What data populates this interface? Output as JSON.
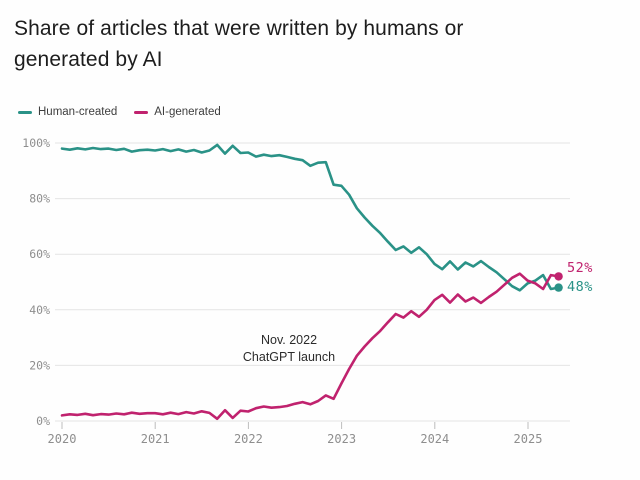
{
  "title": "Share of articles that were written by humans or generated by AI",
  "legend": [
    {
      "label": "Human-created",
      "color": "#2a9287"
    },
    {
      "label": "AI-generated",
      "color": "#c0226e"
    }
  ],
  "annotation": {
    "line1": "Nov. 2022",
    "line2": "ChatGPT launch"
  },
  "chart_data": {
    "type": "line",
    "title": "Share of articles that were written by humans or generated by AI",
    "x_unit": "month",
    "x_start": "2020-01",
    "x_end": "2025-05",
    "x_tick_years": [
      2020,
      2021,
      2022,
      2023,
      2024,
      2025
    ],
    "x_tick_labels": [
      "2020",
      "2021",
      "2022",
      "2023",
      "2024",
      "2025"
    ],
    "y_tick_values": [
      100,
      80,
      60,
      40,
      20,
      0
    ],
    "y_tick_labels": [
      "100%",
      "80%",
      "60%",
      "40%",
      "20%",
      "0%"
    ],
    "ylim": [
      0,
      100
    ],
    "grid": true,
    "grid_color": "#e4e4e4",
    "axis_tick_color": "#bdbdbd",
    "tick_label_color": "#8e8e8e",
    "legend_position": "top-left",
    "series": [
      {
        "id": "human",
        "name": "Human-created",
        "color": "#2a9287",
        "end_label": "48%",
        "end_value": 48,
        "values": [
          98.0,
          97.6,
          98.1,
          97.7,
          98.2,
          97.8,
          98.0,
          97.5,
          97.9,
          96.9,
          97.4,
          97.6,
          97.3,
          97.8,
          97.1,
          97.7,
          96.9,
          97.5,
          96.6,
          97.3,
          99.3,
          96.2,
          99.0,
          96.4,
          96.6,
          95.1,
          95.8,
          95.3,
          95.6,
          95.0,
          94.3,
          93.8,
          91.8,
          92.9,
          93.1,
          85.0,
          84.6,
          81.4,
          76.5,
          73.2,
          70.2,
          67.6,
          64.5,
          61.5,
          62.8,
          60.5,
          62.5,
          60.0,
          56.5,
          54.6,
          57.4,
          54.5,
          57.0,
          55.6,
          57.5,
          55.4,
          53.5,
          51.0,
          48.5,
          47.0,
          49.5,
          50.5,
          52.5,
          47.5,
          48.0
        ]
      },
      {
        "id": "ai",
        "name": "AI-generated",
        "color": "#c0226e",
        "end_label": "52%",
        "end_value": 52,
        "values": [
          2.0,
          2.4,
          2.2,
          2.6,
          2.1,
          2.5,
          2.3,
          2.7,
          2.4,
          3.0,
          2.6,
          2.8,
          2.8,
          2.4,
          3.0,
          2.5,
          3.2,
          2.7,
          3.5,
          2.9,
          0.8,
          3.9,
          1.1,
          3.7,
          3.4,
          4.6,
          5.2,
          4.8,
          5.0,
          5.4,
          6.2,
          6.8,
          6.0,
          7.2,
          9.2,
          8.0,
          13.5,
          18.7,
          23.5,
          26.8,
          29.8,
          32.4,
          35.5,
          38.5,
          37.2,
          39.5,
          37.5,
          40.0,
          43.5,
          45.4,
          42.6,
          45.5,
          43.0,
          44.4,
          42.5,
          44.6,
          46.5,
          49.0,
          51.5,
          53.0,
          50.5,
          49.5,
          47.5,
          52.5,
          52.0
        ]
      }
    ],
    "annotations": [
      {
        "text": "Nov. 2022 ChatGPT launch",
        "x": "2022-11"
      }
    ]
  }
}
